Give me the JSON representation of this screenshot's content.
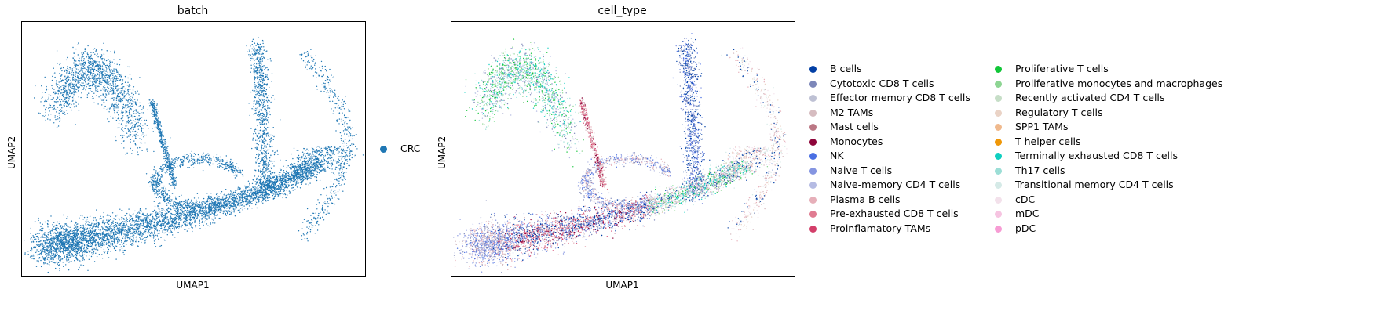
{
  "chart_data": [
    {
      "type": "scatter",
      "title": "batch",
      "xlabel": "UMAP1",
      "ylabel": "UMAP2",
      "grid": false,
      "legend_position": "right",
      "legend": [
        {
          "name": "CRC",
          "color": "#1f77b4"
        }
      ],
      "color_by": "batch"
    },
    {
      "type": "scatter",
      "title": "cell_type",
      "xlabel": "UMAP1",
      "ylabel": "UMAP2",
      "grid": false,
      "legend_position": "right",
      "color_by": "cell_type",
      "legend": [
        {
          "name": "B cells",
          "color": "#023fa5"
        },
        {
          "name": "Cytotoxic CD8 T cells",
          "color": "#7d87b9"
        },
        {
          "name": "Effector memory CD8 T cells",
          "color": "#bec1d4"
        },
        {
          "name": "M2 TAMs",
          "color": "#d6bcc0"
        },
        {
          "name": "Mast cells",
          "color": "#bb7784"
        },
        {
          "name": "Monocytes",
          "color": "#8e063b"
        },
        {
          "name": "NK",
          "color": "#4a6fe3"
        },
        {
          "name": "Naive T cells",
          "color": "#8595e1"
        },
        {
          "name": "Naive-memory CD4 T cells",
          "color": "#b5bbe3"
        },
        {
          "name": "Plasma B cells",
          "color": "#e6afb9"
        },
        {
          "name": "Pre-exhausted CD8 T cells",
          "color": "#e07b91"
        },
        {
          "name": "Proinflamatory TAMs",
          "color": "#d33f6a"
        },
        {
          "name": "Proliferative T cells",
          "color": "#11c638"
        },
        {
          "name": "Proliferative monocytes and macrophages",
          "color": "#8dd593"
        },
        {
          "name": "Recently activated CD4 T cells",
          "color": "#c6dec7"
        },
        {
          "name": "Regulatory T cells",
          "color": "#ead3c6"
        },
        {
          "name": "SPP1 TAMs",
          "color": "#f0b98d"
        },
        {
          "name": "T helper cells",
          "color": "#ef9708"
        },
        {
          "name": "Terminally exhausted CD8 T cells",
          "color": "#0fcfc0"
        },
        {
          "name": "Th17 cells",
          "color": "#9cded6"
        },
        {
          "name": "Transitional memory CD4 T cells",
          "color": "#d5eae7"
        },
        {
          "name": "cDC",
          "color": "#f3e1eb"
        },
        {
          "name": "mDC",
          "color": "#f6c4e1"
        },
        {
          "name": "pDC",
          "color": "#f79cd4"
        }
      ]
    }
  ]
}
